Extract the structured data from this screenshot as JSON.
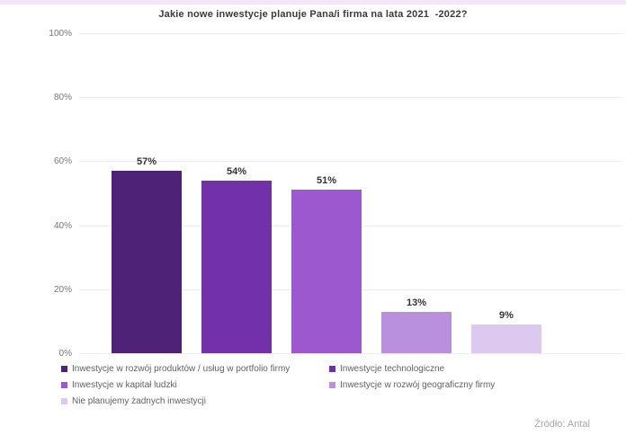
{
  "page": {
    "top_strip_color": "#f2e5f7",
    "source_label": "Źródło: Antal"
  },
  "chart_data": {
    "type": "bar",
    "title": "Jakie nowe inwestycje planuje Pana/i firma na lata 2021  -2022?",
    "categories": [
      "Inwestycje w rozwój produktów / usług w portfolio firmy",
      "Inwestycje technologiczne",
      "Inwestycje w kapitał ludzki",
      "Inwestycje w rozwój geograficzny firmy",
      "Nie planujemy żadnych inwestycji"
    ],
    "values": [
      57,
      54,
      51,
      13,
      9
    ],
    "value_labels": [
      "57%",
      "54%",
      "51%",
      "13%",
      "9%"
    ],
    "bar_colors": [
      "#4e2277",
      "#7230a9",
      "#9b58cf",
      "#b890dc",
      "#ddc9f0"
    ],
    "y_ticks": [
      "100%",
      "80%",
      "60%",
      "40%",
      "20%",
      "0%"
    ],
    "ylim": [
      0,
      100
    ],
    "xlabel": "",
    "ylabel": "",
    "grid": true,
    "legend_position": "bottom",
    "colors": {
      "gridline": "#ededed",
      "tick_text": "#757575",
      "legend_text": "#606060",
      "title_text": "#3a3a3a",
      "value_label_text": "#333333",
      "source_text": "#a6a6a6"
    }
  }
}
